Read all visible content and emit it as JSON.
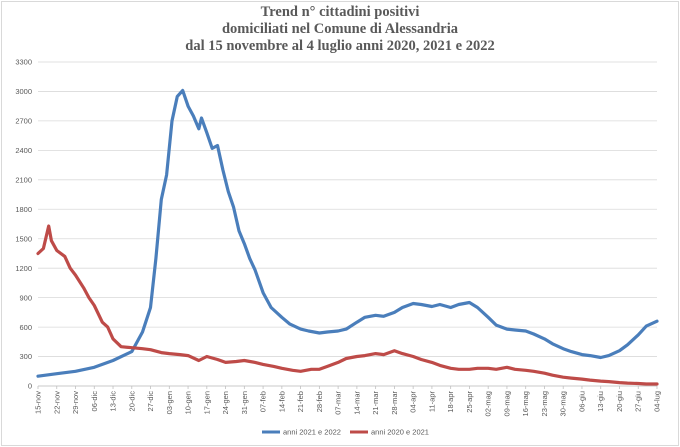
{
  "chart_data": {
    "type": "line",
    "title": [
      "Trend n° cittadini positivi",
      "domiciliati nel Comune di Alessandria",
      "dal 15 novembre al 4 luglio anni 2020, 2021 e 2022"
    ],
    "xlabel": "",
    "ylabel": "",
    "ylim": [
      0,
      3300
    ],
    "yticks": [
      0,
      300,
      600,
      900,
      1200,
      1500,
      1800,
      2100,
      2400,
      2700,
      3000,
      3300
    ],
    "grid": "horizontal",
    "legend_position": "bottom",
    "x_range": [
      "15-nov",
      "04-lug"
    ],
    "x_ticks": [
      "15-nov",
      "22-nov",
      "29-nov",
      "06-dic",
      "13-dic",
      "20-dic",
      "27-dic",
      "03-gen",
      "10-gen",
      "17-gen",
      "24-gen",
      "31-gen",
      "07-feb",
      "14-feb",
      "21-feb",
      "28-feb",
      "07-mar",
      "14-mar",
      "21-mar",
      "28-mar",
      "04-apr",
      "11-apr",
      "18-apr",
      "25-apr",
      "02-mag",
      "09-mag",
      "16-mag",
      "23-mag",
      "30-mag",
      "06-giu",
      "13-giu",
      "20-giu",
      "27-giu",
      "04-lug"
    ],
    "series": [
      {
        "name": "anni 2021 e 2022",
        "color": "#4a7ebb",
        "points": [
          [
            "15-nov",
            100
          ],
          [
            "22-nov",
            125
          ],
          [
            "29-nov",
            150
          ],
          [
            "06-dic",
            190
          ],
          [
            "13-dic",
            260
          ],
          [
            "20-dic",
            350
          ],
          [
            "24-dic",
            550
          ],
          [
            "27-dic",
            800
          ],
          [
            "29-dic",
            1300
          ],
          [
            "31-dic",
            1900
          ],
          [
            "02-gen",
            2150
          ],
          [
            "04-gen",
            2700
          ],
          [
            "06-gen",
            2950
          ],
          [
            "08-gen",
            3010
          ],
          [
            "10-gen",
            2850
          ],
          [
            "12-gen",
            2750
          ],
          [
            "14-gen",
            2620
          ],
          [
            "15-gen",
            2730
          ],
          [
            "17-gen",
            2580
          ],
          [
            "19-gen",
            2420
          ],
          [
            "21-gen",
            2450
          ],
          [
            "23-gen",
            2200
          ],
          [
            "25-gen",
            1980
          ],
          [
            "27-gen",
            1820
          ],
          [
            "29-gen",
            1580
          ],
          [
            "31-gen",
            1450
          ],
          [
            "02-feb",
            1300
          ],
          [
            "04-feb",
            1180
          ],
          [
            "07-feb",
            950
          ],
          [
            "10-feb",
            800
          ],
          [
            "14-feb",
            700
          ],
          [
            "17-feb",
            630
          ],
          [
            "21-feb",
            580
          ],
          [
            "24-feb",
            560
          ],
          [
            "28-feb",
            540
          ],
          [
            "03-mar",
            550
          ],
          [
            "07-mar",
            560
          ],
          [
            "10-mar",
            580
          ],
          [
            "14-mar",
            650
          ],
          [
            "17-mar",
            700
          ],
          [
            "21-mar",
            720
          ],
          [
            "24-mar",
            710
          ],
          [
            "28-mar",
            750
          ],
          [
            "31-mar",
            800
          ],
          [
            "04-apr",
            840
          ],
          [
            "07-apr",
            830
          ],
          [
            "11-apr",
            810
          ],
          [
            "14-apr",
            830
          ],
          [
            "18-apr",
            800
          ],
          [
            "21-apr",
            830
          ],
          [
            "25-apr",
            850
          ],
          [
            "28-apr",
            800
          ],
          [
            "02-mag",
            700
          ],
          [
            "05-mag",
            620
          ],
          [
            "09-mag",
            580
          ],
          [
            "12-mag",
            570
          ],
          [
            "16-mag",
            560
          ],
          [
            "19-mag",
            530
          ],
          [
            "23-mag",
            480
          ],
          [
            "26-mag",
            430
          ],
          [
            "30-mag",
            380
          ],
          [
            "02-giu",
            350
          ],
          [
            "06-giu",
            320
          ],
          [
            "09-giu",
            310
          ],
          [
            "13-giu",
            290
          ],
          [
            "16-giu",
            310
          ],
          [
            "20-giu",
            360
          ],
          [
            "23-giu",
            420
          ],
          [
            "27-giu",
            520
          ],
          [
            "30-giu",
            610
          ],
          [
            "04-lug",
            660
          ]
        ]
      },
      {
        "name": "anni 2020 e 2021",
        "color": "#be4b48",
        "points": [
          [
            "15-nov",
            1350
          ],
          [
            "17-nov",
            1400
          ],
          [
            "19-nov",
            1630
          ],
          [
            "20-nov",
            1480
          ],
          [
            "22-nov",
            1380
          ],
          [
            "25-nov",
            1320
          ],
          [
            "27-nov",
            1200
          ],
          [
            "29-nov",
            1130
          ],
          [
            "02-dic",
            1000
          ],
          [
            "04-dic",
            900
          ],
          [
            "06-dic",
            820
          ],
          [
            "09-dic",
            650
          ],
          [
            "11-dic",
            600
          ],
          [
            "13-dic",
            480
          ],
          [
            "16-dic",
            400
          ],
          [
            "20-dic",
            390
          ],
          [
            "24-dic",
            380
          ],
          [
            "27-dic",
            370
          ],
          [
            "31-dic",
            340
          ],
          [
            "03-gen",
            330
          ],
          [
            "07-gen",
            320
          ],
          [
            "10-gen",
            310
          ],
          [
            "14-gen",
            260
          ],
          [
            "17-gen",
            300
          ],
          [
            "21-gen",
            270
          ],
          [
            "24-gen",
            240
          ],
          [
            "28-gen",
            250
          ],
          [
            "31-gen",
            260
          ],
          [
            "04-feb",
            240
          ],
          [
            "07-feb",
            220
          ],
          [
            "11-feb",
            200
          ],
          [
            "14-feb",
            180
          ],
          [
            "18-feb",
            160
          ],
          [
            "21-feb",
            150
          ],
          [
            "25-feb",
            170
          ],
          [
            "28-feb",
            170
          ],
          [
            "03-mar",
            200
          ],
          [
            "07-mar",
            240
          ],
          [
            "10-mar",
            280
          ],
          [
            "14-mar",
            300
          ],
          [
            "17-mar",
            310
          ],
          [
            "21-mar",
            330
          ],
          [
            "24-mar",
            320
          ],
          [
            "28-mar",
            360
          ],
          [
            "31-mar",
            330
          ],
          [
            "04-apr",
            300
          ],
          [
            "07-apr",
            270
          ],
          [
            "11-apr",
            240
          ],
          [
            "14-apr",
            210
          ],
          [
            "18-apr",
            180
          ],
          [
            "21-apr",
            170
          ],
          [
            "25-apr",
            170
          ],
          [
            "28-apr",
            180
          ],
          [
            "02-mag",
            180
          ],
          [
            "05-mag",
            170
          ],
          [
            "09-mag",
            190
          ],
          [
            "12-mag",
            170
          ],
          [
            "16-mag",
            160
          ],
          [
            "19-mag",
            150
          ],
          [
            "23-mag",
            130
          ],
          [
            "26-mag",
            110
          ],
          [
            "30-mag",
            90
          ],
          [
            "02-giu",
            80
          ],
          [
            "06-giu",
            70
          ],
          [
            "09-giu",
            60
          ],
          [
            "13-giu",
            50
          ],
          [
            "16-giu",
            45
          ],
          [
            "20-giu",
            35
          ],
          [
            "23-giu",
            30
          ],
          [
            "27-giu",
            25
          ],
          [
            "30-giu",
            20
          ],
          [
            "04-lug",
            20
          ]
        ]
      }
    ]
  }
}
